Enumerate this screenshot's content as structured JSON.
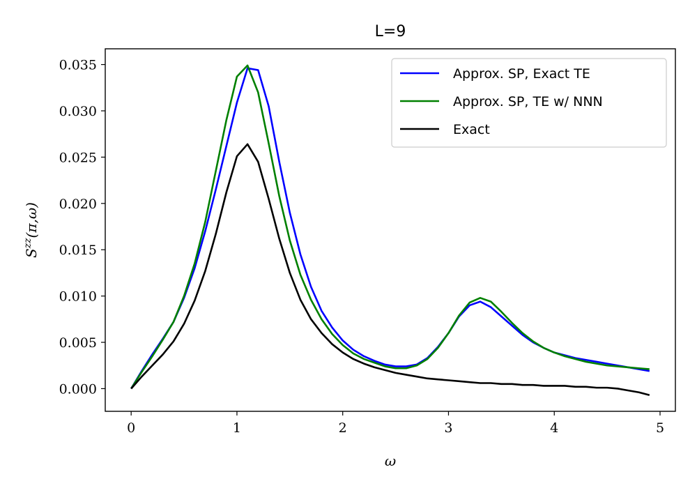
{
  "chart_data": {
    "type": "line",
    "title": "L=9",
    "xlabel": "ω",
    "ylabel": "S^zz(π,ω)",
    "xlim": [
      -0.245,
      5.145
    ],
    "ylim": [
      -0.00245,
      0.0367
    ],
    "xticks": [
      0,
      1,
      2,
      3,
      4,
      5
    ],
    "xtick_labels": [
      "0",
      "1",
      "2",
      "3",
      "4",
      "5"
    ],
    "yticks": [
      0.0,
      0.005,
      0.01,
      0.015,
      0.02,
      0.025,
      0.03,
      0.035
    ],
    "ytick_labels": [
      "0.000",
      "0.005",
      "0.010",
      "0.015",
      "0.020",
      "0.025",
      "0.030",
      "0.035"
    ],
    "grid": false,
    "legend_position": "top-right",
    "x": [
      0.0,
      0.1,
      0.2,
      0.3,
      0.4,
      0.5,
      0.6,
      0.7,
      0.8,
      0.9,
      1.0,
      1.1,
      1.2,
      1.3,
      1.4,
      1.5,
      1.6,
      1.7,
      1.8,
      1.9,
      2.0,
      2.1,
      2.2,
      2.3,
      2.4,
      2.5,
      2.6,
      2.7,
      2.8,
      2.9,
      3.0,
      3.1,
      3.2,
      3.3,
      3.4,
      3.5,
      3.6,
      3.7,
      3.8,
      3.9,
      4.0,
      4.1,
      4.2,
      4.3,
      4.4,
      4.5,
      4.6,
      4.7,
      4.8,
      4.9
    ],
    "series": [
      {
        "name": "Approx. SP, Exact TE",
        "color": "#0000ff",
        "values": [
          0.0,
          0.0019,
          0.0037,
          0.0054,
          0.0072,
          0.0098,
          0.013,
          0.017,
          0.0215,
          0.0262,
          0.0309,
          0.0346,
          0.0344,
          0.0305,
          0.0245,
          0.019,
          0.0145,
          0.011,
          0.0084,
          0.0066,
          0.0052,
          0.0042,
          0.0035,
          0.003,
          0.0026,
          0.0024,
          0.0024,
          0.0026,
          0.0033,
          0.0045,
          0.006,
          0.0078,
          0.009,
          0.0094,
          0.0088,
          0.0078,
          0.0068,
          0.0058,
          0.005,
          0.0044,
          0.0039,
          0.0036,
          0.0033,
          0.0031,
          0.0029,
          0.0027,
          0.0025,
          0.0023,
          0.0021,
          0.0019
        ]
      },
      {
        "name": "Approx. SP, TE w/ NNN",
        "color": "#008000",
        "values": [
          0.0,
          0.0018,
          0.0035,
          0.0053,
          0.0072,
          0.01,
          0.0135,
          0.018,
          0.0235,
          0.029,
          0.0337,
          0.0349,
          0.032,
          0.0265,
          0.0208,
          0.016,
          0.0123,
          0.0096,
          0.0075,
          0.0059,
          0.0047,
          0.0038,
          0.0032,
          0.0028,
          0.0024,
          0.0022,
          0.0022,
          0.0025,
          0.0032,
          0.0044,
          0.006,
          0.0079,
          0.0093,
          0.0098,
          0.0094,
          0.0083,
          0.0071,
          0.006,
          0.0051,
          0.0044,
          0.0039,
          0.0035,
          0.0032,
          0.0029,
          0.0027,
          0.0025,
          0.0024,
          0.0023,
          0.0022,
          0.0021
        ]
      },
      {
        "name": "Exact",
        "color": "#000000",
        "values": [
          0.0,
          0.0013,
          0.0025,
          0.0037,
          0.0051,
          0.007,
          0.0095,
          0.0127,
          0.0167,
          0.0212,
          0.0251,
          0.0264,
          0.0245,
          0.0205,
          0.0162,
          0.0125,
          0.0096,
          0.0075,
          0.006,
          0.0048,
          0.0039,
          0.0032,
          0.0027,
          0.0023,
          0.002,
          0.0017,
          0.0015,
          0.0013,
          0.0011,
          0.001,
          0.0009,
          0.0008,
          0.0007,
          0.0006,
          0.0006,
          0.0005,
          0.0005,
          0.0004,
          0.0004,
          0.0003,
          0.0003,
          0.0003,
          0.0002,
          0.0002,
          0.0001,
          0.0001,
          0.0,
          -0.0002,
          -0.0004,
          -0.0007
        ]
      }
    ]
  }
}
